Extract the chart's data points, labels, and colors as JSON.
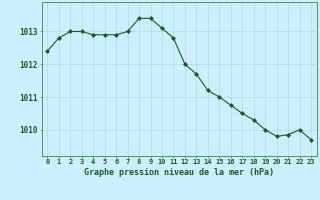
{
  "x": [
    0,
    1,
    2,
    3,
    4,
    5,
    6,
    7,
    8,
    9,
    10,
    11,
    12,
    13,
    14,
    15,
    16,
    17,
    18,
    19,
    20,
    21,
    22,
    23
  ],
  "y": [
    1012.4,
    1012.8,
    1013.0,
    1013.0,
    1012.9,
    1012.9,
    1012.9,
    1013.0,
    1013.4,
    1013.4,
    1013.1,
    1012.8,
    1012.0,
    1011.7,
    1011.2,
    1011.0,
    1010.75,
    1010.5,
    1010.3,
    1010.0,
    1009.8,
    1009.85,
    1010.0,
    1009.7
  ],
  "line_color": "#1a5c1a",
  "marker": "D",
  "marker_size": 2.0,
  "bg_color": "#cceeff",
  "grid_color": "#aadddd",
  "ylabel_ticks": [
    1010,
    1011,
    1012,
    1013
  ],
  "xlabel_label": "Graphe pression niveau de la mer (hPa)",
  "xlabel_color": "#1a5c1a",
  "ylim": [
    1009.2,
    1013.9
  ],
  "xlim": [
    -0.5,
    23.5
  ],
  "tick_label_color": "#1a5c1a",
  "spine_color": "#3a8a3a",
  "tick_fontsize": 5.0,
  "xlabel_fontsize": 6.0,
  "ylabel_fontsize": 5.5
}
